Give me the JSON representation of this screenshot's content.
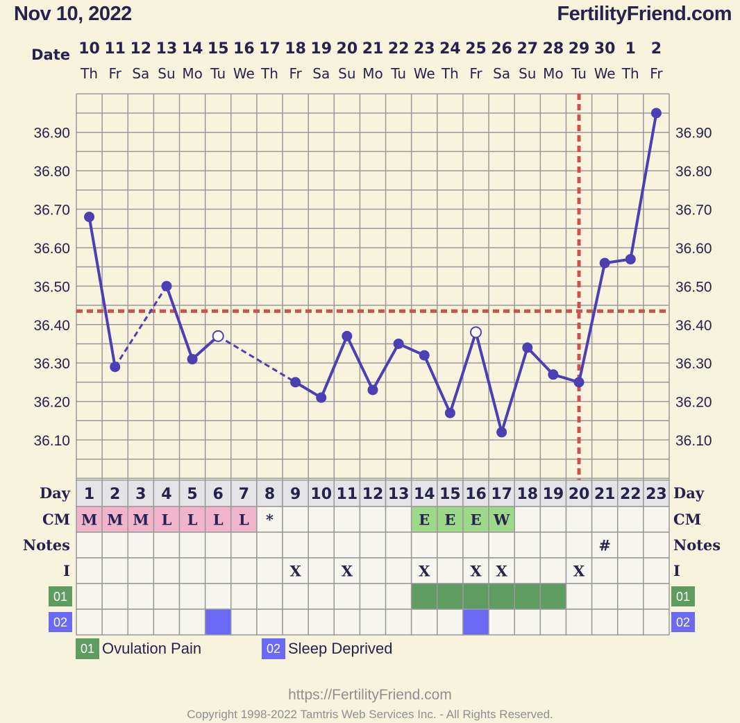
{
  "header": {
    "date": "Nov 10, 2022",
    "site": "FertilityFriend.com"
  },
  "chart_data": {
    "type": "line",
    "row_labels": {
      "date": "Date",
      "day": "Day",
      "cm": "CM",
      "notes": "Notes",
      "intercourse": "I"
    },
    "dates": [
      "10",
      "11",
      "12",
      "13",
      "14",
      "15",
      "16",
      "17",
      "18",
      "19",
      "20",
      "21",
      "22",
      "23",
      "24",
      "25",
      "26",
      "27",
      "28",
      "29",
      "30",
      "1",
      "2"
    ],
    "weekdays": [
      "Th",
      "Fr",
      "Sa",
      "Su",
      "Mo",
      "Tu",
      "We",
      "Th",
      "Fr",
      "Sa",
      "Su",
      "Mo",
      "Tu",
      "We",
      "Th",
      "Fr",
      "Sa",
      "Su",
      "Mo",
      "Tu",
      "We",
      "Th",
      "Fr"
    ],
    "cycle_days": [
      "1",
      "2",
      "3",
      "4",
      "5",
      "6",
      "7",
      "8",
      "9",
      "10",
      "11",
      "12",
      "13",
      "14",
      "15",
      "16",
      "17",
      "18",
      "19",
      "20",
      "21",
      "22",
      "23"
    ],
    "y_ticks": [
      "36.90",
      "36.80",
      "36.70",
      "36.60",
      "36.50",
      "36.40",
      "36.30",
      "36.20",
      "36.10"
    ],
    "ylim": [
      36.0,
      37.0
    ],
    "temperatures": [
      36.68,
      36.29,
      null,
      36.5,
      36.31,
      36.37,
      null,
      null,
      36.25,
      36.21,
      36.37,
      36.23,
      36.35,
      36.32,
      36.17,
      36.38,
      36.12,
      36.34,
      36.27,
      36.25,
      36.56,
      36.57,
      36.95
    ],
    "open_points": [
      6,
      16
    ],
    "dashed_segments": [
      [
        2,
        4
      ],
      [
        6,
        9
      ]
    ],
    "coverline": 36.435,
    "ovulation_day": 20,
    "cm": [
      "M",
      "M",
      "M",
      "L",
      "L",
      "L",
      "L",
      "*",
      "",
      "",
      "",
      "",
      "",
      "E",
      "E",
      "E",
      "W",
      "",
      "",
      "",
      "",
      "",
      ""
    ],
    "cm_colors": {
      "M": "#f0b4cb",
      "L": "#f0b4cb",
      "E": "#9ed98a",
      "W": "#9ed98a"
    },
    "notes": [
      "",
      "",
      "",
      "",
      "",
      "",
      "",
      "",
      "",
      "",
      "",
      "",
      "",
      "",
      "",
      "",
      "",
      "",
      "",
      "",
      "#",
      "",
      ""
    ],
    "intercourse": [
      "",
      "",
      "",
      "",
      "",
      "",
      "",
      "",
      "X",
      "",
      "X",
      "",
      "",
      "X",
      "",
      "X",
      "X",
      "",
      "",
      "X",
      "",
      "",
      ""
    ],
    "symptom_rows": [
      {
        "code": "01",
        "name": "Ovulation Pain",
        "color": "#5f9c62",
        "days": [
          14,
          15,
          16,
          17,
          18,
          19
        ]
      },
      {
        "code": "02",
        "name": "Sleep Deprived",
        "color": "#6a6af7",
        "days": [
          6,
          16
        ]
      }
    ],
    "colors": {
      "line": "#4b3fb3",
      "coverline": "#cf5050",
      "grid": "#999999",
      "background": "#f8f3dc",
      "table_bg": "#f6f6ef",
      "day_row_bg": "#e4e4e6"
    }
  },
  "footer": {
    "url": "https://FertilityFriend.com",
    "copyright": "Copyright 1998-2022 Tamtris Web Services Inc. - All Rights Reserved."
  }
}
